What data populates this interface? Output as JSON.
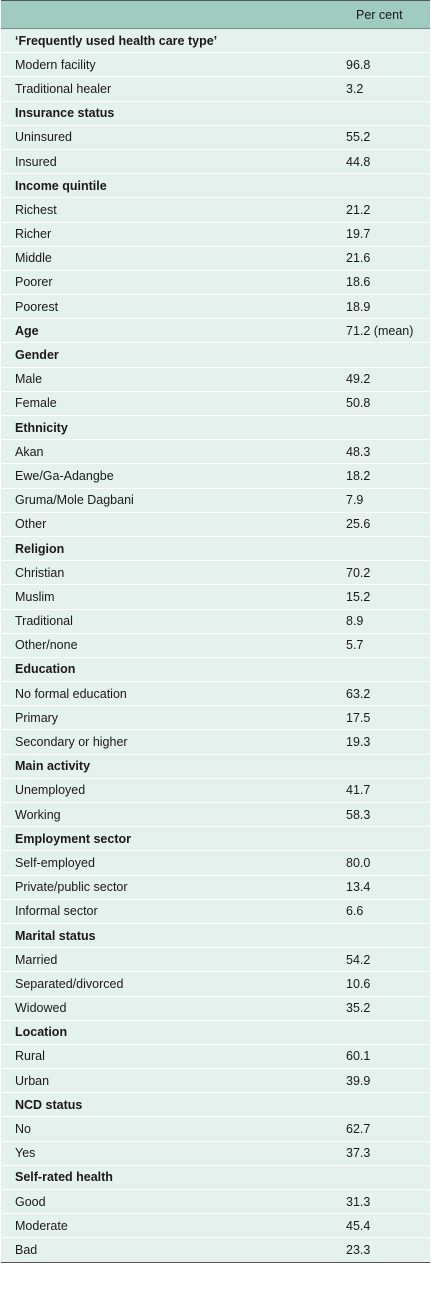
{
  "table": {
    "header": {
      "label": "",
      "value": "Per cent"
    },
    "rows": [
      {
        "label": "‘Frequently used health care type’",
        "value": "",
        "section": true
      },
      {
        "label": "Modern facility",
        "value": "96.8",
        "section": false
      },
      {
        "label": "Traditional healer",
        "value": "3.2",
        "section": false
      },
      {
        "label": "Insurance status",
        "value": "",
        "section": true
      },
      {
        "label": "Uninsured",
        "value": "55.2",
        "section": false
      },
      {
        "label": "Insured",
        "value": "44.8",
        "section": false
      },
      {
        "label": "Income quintile",
        "value": "",
        "section": true
      },
      {
        "label": "Richest",
        "value": "21.2",
        "section": false
      },
      {
        "label": "Richer",
        "value": "19.7",
        "section": false
      },
      {
        "label": "Middle",
        "value": "21.6",
        "section": false
      },
      {
        "label": "Poorer",
        "value": "18.6",
        "section": false
      },
      {
        "label": "Poorest",
        "value": "18.9",
        "section": false
      },
      {
        "label": "Age",
        "value": "71.2 (mean)",
        "section": true
      },
      {
        "label": "Gender",
        "value": "",
        "section": true
      },
      {
        "label": "Male",
        "value": "49.2",
        "section": false
      },
      {
        "label": "Female",
        "value": "50.8",
        "section": false
      },
      {
        "label": "Ethnicity",
        "value": "",
        "section": true
      },
      {
        "label": "Akan",
        "value": "48.3",
        "section": false
      },
      {
        "label": "Ewe/Ga-Adangbe",
        "value": "18.2",
        "section": false
      },
      {
        "label": "Gruma/Mole Dagbani",
        "value": "7.9",
        "section": false
      },
      {
        "label": "Other",
        "value": "25.6",
        "section": false
      },
      {
        "label": "Religion",
        "value": "",
        "section": true
      },
      {
        "label": "Christian",
        "value": "70.2",
        "section": false
      },
      {
        "label": "Muslim",
        "value": "15.2",
        "section": false
      },
      {
        "label": "Traditional",
        "value": "8.9",
        "section": false
      },
      {
        "label": "Other/none",
        "value": "5.7",
        "section": false
      },
      {
        "label": "Education",
        "value": "",
        "section": true
      },
      {
        "label": "No formal education",
        "value": "63.2",
        "section": false
      },
      {
        "label": "Primary",
        "value": "17.5",
        "section": false
      },
      {
        "label": "Secondary or higher",
        "value": "19.3",
        "section": false
      },
      {
        "label": "Main activity",
        "value": "",
        "section": true
      },
      {
        "label": "Unemployed",
        "value": "41.7",
        "section": false
      },
      {
        "label": "Working",
        "value": "58.3",
        "section": false
      },
      {
        "label": "Employment sector",
        "value": "",
        "section": true
      },
      {
        "label": "Self-employed",
        "value": "80.0",
        "section": false
      },
      {
        "label": "Private/public sector",
        "value": "13.4",
        "section": false
      },
      {
        "label": "Informal sector",
        "value": "6.6",
        "section": false
      },
      {
        "label": "Marital status",
        "value": "",
        "section": true
      },
      {
        "label": "Married",
        "value": "54.2",
        "section": false
      },
      {
        "label": "Separated/divorced",
        "value": "10.6",
        "section": false
      },
      {
        "label": "Widowed",
        "value": "35.2",
        "section": false
      },
      {
        "label": "Location",
        "value": "",
        "section": true
      },
      {
        "label": "Rural",
        "value": "60.1",
        "section": false
      },
      {
        "label": "Urban",
        "value": "39.9",
        "section": false
      },
      {
        "label": "NCD status",
        "value": "",
        "section": true
      },
      {
        "label": "No",
        "value": "62.7",
        "section": false
      },
      {
        "label": "Yes",
        "value": "37.3",
        "section": false
      },
      {
        "label": "Self-rated health",
        "value": "",
        "section": true
      },
      {
        "label": "Good",
        "value": "31.3",
        "section": false
      },
      {
        "label": "Moderate",
        "value": "45.4",
        "section": false
      },
      {
        "label": "Bad",
        "value": "23.3",
        "section": false
      }
    ]
  }
}
